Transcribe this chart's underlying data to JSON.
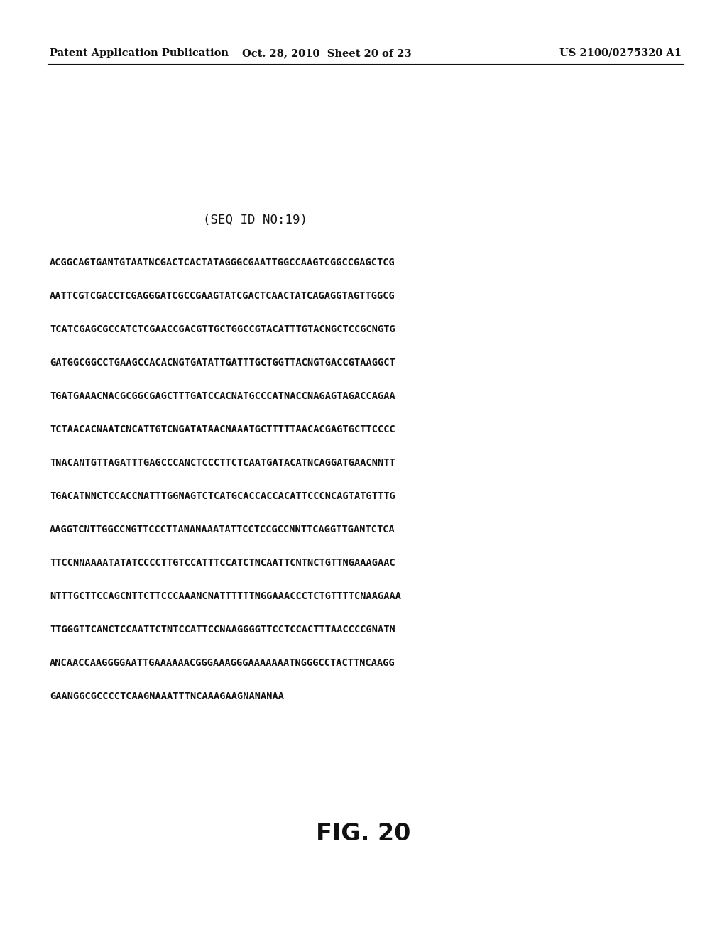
{
  "background_color": "#ffffff",
  "header_left": "Patent Application Publication",
  "header_center": "Oct. 28, 2010  Sheet 20 of 23",
  "header_right": "US 2100/0275320 A1",
  "seq_label": "(SEQ ID NO:19)",
  "sequence_lines": [
    "ACGGCAGTGANTGTAATNCGACTCACTATAGGGCGAATTGGCCAAGTCGGCCGAGCTCG",
    "AATTCGTCGACCTCGAGGGATCGCCGAAGTATCGACTCAACTATCAGAGGTAGTTGGCG",
    "TCATCGAGCGCCATCTCGAACCGACGTTGCTGGCCGTACATTTGTACNGCTCCGCNGTG",
    "GATGGCGGCCTGAAGCCACACNGTGATATTGATTTGCTGGTTACNGTGACCGTAAGGCT",
    "TGATGAAACNACGCGGCGAGCTTTGATCCACNATGCCCATNACCNAGAGTAGACCAGAA",
    "TCTAACACNAATCNCATTGTCNGATATAACNAAATGCTTTTTAACACGAGTGCTTCCCC",
    "TNACANTGTTAGATTTGAGCCCANCTCCCTTCTCAATGATACATNCAGGATGAACNNTT",
    "TGACATNNCTCCACCNATTTGGNAGTCTCATGCACCACCACATTCCCNCAGTATGTTTG",
    "AAGGTCNTTGGCCNGTTCCCTTANANAAATATTCCTCCGCCNNTTCAGGTTGANTCTCA",
    "TTCCNNAAAATATATCCCCTTGTCCATTTCCATCTNCAATTCNTNCTGTTNGAAAGAAC",
    "NTTTGCTTCCAGCNTTCTTCCCAAANCNATTTTTTNGGAAACCCTCTGTTTTCNAAGAAA",
    "TTGGGTTCANCTCCAATTCTNTCCATTCCNAAGGGGTTCCTCCACTTTAACCCCGNATN",
    "ANCAACCAAGGGGAATTGAAAAAACGGGAAAGGGAAAAAAATNGGGCCTACTTNCAAGG",
    "GAANGGCGCCCCTCAAGNAAATTTNCAAAGAAGNANANAA"
  ],
  "fig_label": "FIG. 20",
  "header_fontsize": 10.5,
  "seq_label_fontsize": 12.5,
  "sequence_fontsize": 9.8,
  "fig_label_fontsize": 24
}
